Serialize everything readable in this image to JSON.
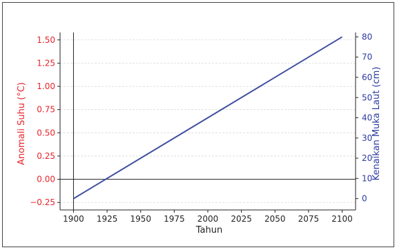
{
  "chart_data": {
    "type": "line",
    "xlabel": "Tahun",
    "ylabel_left": "Anomali Suhu (°C)",
    "ylabel_right": "Kenaikan Muka Laut (cm)",
    "xlim": [
      1890,
      2110
    ],
    "ylim_left": [
      -0.33,
      1.58
    ],
    "ylim_right": [
      -5.6,
      82.2
    ],
    "x_ticks": [
      1900,
      1925,
      1950,
      1975,
      2000,
      2025,
      2050,
      2075,
      2100
    ],
    "left_ticks": [
      -0.25,
      0.0,
      0.25,
      0.5,
      0.75,
      1.0,
      1.25,
      1.5
    ],
    "left_tick_labels": [
      "−0.25",
      "0.00",
      "0.25",
      "0.50",
      "0.75",
      "1.00",
      "1.25",
      "1.50"
    ],
    "right_ticks": [
      0,
      10,
      20,
      30,
      40,
      50,
      60,
      70,
      80
    ],
    "right_tick_labels": [
      "0",
      "10",
      "20",
      "30",
      "40",
      "50",
      "60",
      "70",
      "80"
    ],
    "grid": "horizontal",
    "reference_lines": {
      "horizontal_left": 0.0,
      "vertical_x": 1900
    },
    "series": [
      {
        "axis": "right",
        "color": "#3f4fa1",
        "x": [
          1900,
          2100
        ],
        "y": [
          0,
          80
        ]
      }
    ],
    "colors": {
      "left_axis": "#e8242a",
      "right_axis": "#2b3aa0",
      "axes": "#222222",
      "grid": "#d9d9d9"
    }
  }
}
